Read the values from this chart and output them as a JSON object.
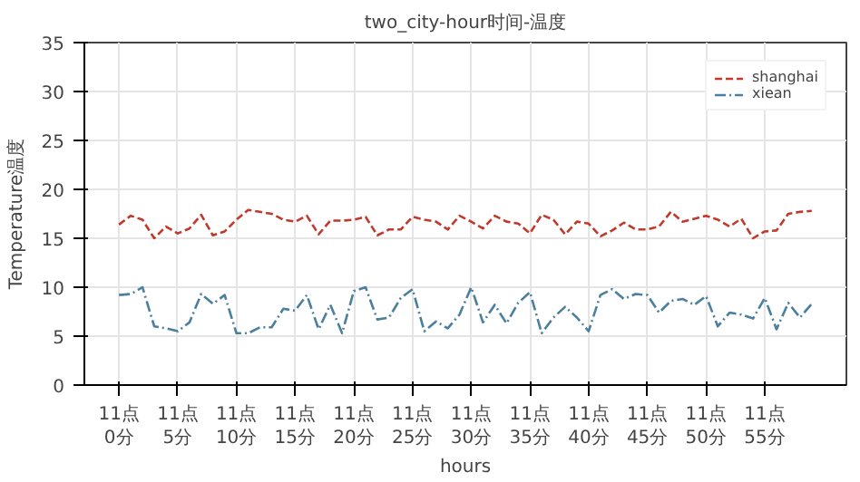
{
  "chart_data": {
    "type": "line",
    "title": "two_city-hour时间-温度",
    "xlabel": "hours",
    "ylabel": "Temperature温度",
    "categories": [
      "11点0分",
      null,
      null,
      null,
      null,
      "11点5分",
      null,
      null,
      null,
      null,
      "11点10分",
      null,
      null,
      null,
      null,
      "11点15分",
      null,
      null,
      null,
      null,
      "11点20分",
      null,
      null,
      null,
      null,
      "11点25分",
      null,
      null,
      null,
      null,
      "11点30分",
      null,
      null,
      null,
      null,
      "11点35分",
      null,
      null,
      null,
      null,
      "11点40分",
      null,
      null,
      null,
      null,
      "11点45分",
      null,
      null,
      null,
      null,
      "11点50分",
      null,
      null,
      null,
      null,
      "11点55分",
      null,
      null,
      null,
      null
    ],
    "series": [
      {
        "name": "shanghai",
        "color": "#c0392b",
        "line_style": "dashed",
        "values": [
          16.4,
          17.3,
          16.9,
          15.0,
          16.2,
          15.5,
          16.0,
          17.4,
          15.3,
          15.7,
          16.9,
          17.9,
          17.7,
          17.5,
          16.9,
          16.7,
          17.3,
          15.4,
          16.8,
          16.8,
          16.9,
          17.2,
          15.3,
          15.9,
          15.9,
          17.2,
          16.9,
          16.7,
          15.9,
          17.3,
          16.7,
          16.0,
          17.3,
          16.7,
          16.5,
          15.5,
          17.4,
          16.9,
          15.4,
          16.7,
          16.5,
          15.2,
          15.8,
          16.6,
          15.9,
          15.9,
          16.2,
          17.7,
          16.7,
          17.0,
          17.3,
          16.9,
          16.2,
          17.0,
          15.0,
          15.7,
          15.8,
          17.5,
          17.7,
          17.8
        ]
      },
      {
        "name": "xiean",
        "color": "#4a7f9e",
        "line_style": "dashdot",
        "values": [
          9.2,
          9.3,
          10.0,
          6.0,
          5.8,
          5.5,
          6.4,
          9.3,
          8.3,
          9.2,
          5.3,
          5.3,
          5.9,
          5.9,
          7.8,
          7.6,
          9.2,
          5.7,
          8.2,
          5.3,
          9.6,
          10.0,
          6.7,
          6.9,
          8.9,
          9.8,
          5.5,
          6.5,
          5.8,
          7.2,
          10.0,
          6.4,
          8.2,
          6.3,
          8.4,
          9.5,
          5.3,
          6.9,
          8.0,
          6.9,
          5.5,
          9.2,
          9.8,
          8.8,
          9.3,
          9.2,
          7.4,
          8.6,
          8.8,
          8.2,
          9.1,
          6.0,
          7.4,
          7.2,
          6.8,
          8.9,
          5.7,
          8.4,
          6.9,
          8.3
        ]
      }
    ],
    "ylim": [
      0,
      35
    ],
    "yticks": [
      0,
      5,
      10,
      15,
      20,
      25,
      30,
      35
    ],
    "grid": true,
    "legend": "top right",
    "marker": "none"
  }
}
